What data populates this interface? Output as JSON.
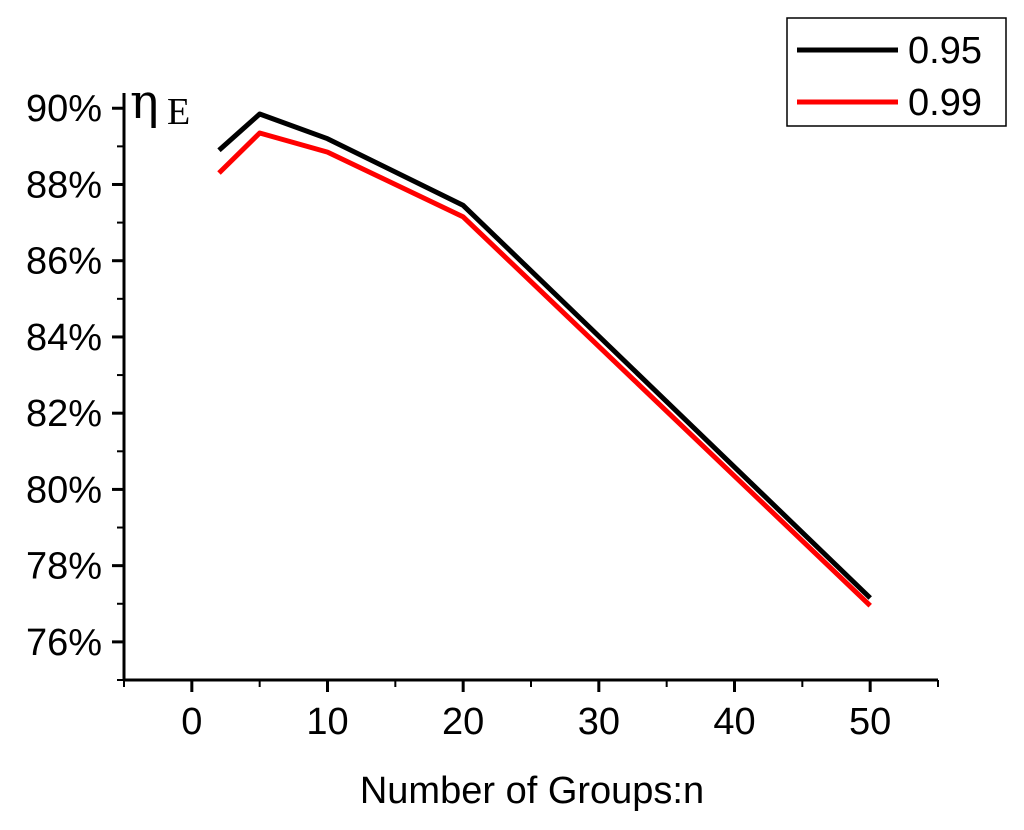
{
  "chart_data": {
    "type": "line",
    "xlabel": "Number of Groups:n",
    "ylabel": "η",
    "ylabel_subscript": "E",
    "xlim": [
      -5,
      55
    ],
    "ylim": [
      75,
      90.4
    ],
    "xticks": [
      0,
      10,
      20,
      30,
      40,
      50
    ],
    "xtick_labels": [
      "0",
      "10",
      "20",
      "30",
      "40",
      "50"
    ],
    "yticks": [
      76,
      78,
      80,
      82,
      84,
      86,
      88,
      90
    ],
    "ytick_labels": [
      "76%",
      "78%",
      "80%",
      "82%",
      "84%",
      "86%",
      "88%",
      "90%"
    ],
    "grid": false,
    "legend_position": "top-right",
    "series": [
      {
        "name": "0.95",
        "color": "#000000",
        "x": [
          2,
          5,
          10,
          20,
          50
        ],
        "y": [
          88.9,
          89.85,
          89.2,
          87.45,
          77.15
        ]
      },
      {
        "name": "0.99",
        "color": "#ff0000",
        "x": [
          2,
          5,
          10,
          20,
          50
        ],
        "y": [
          88.3,
          89.35,
          88.85,
          87.15,
          76.95
        ]
      }
    ]
  }
}
